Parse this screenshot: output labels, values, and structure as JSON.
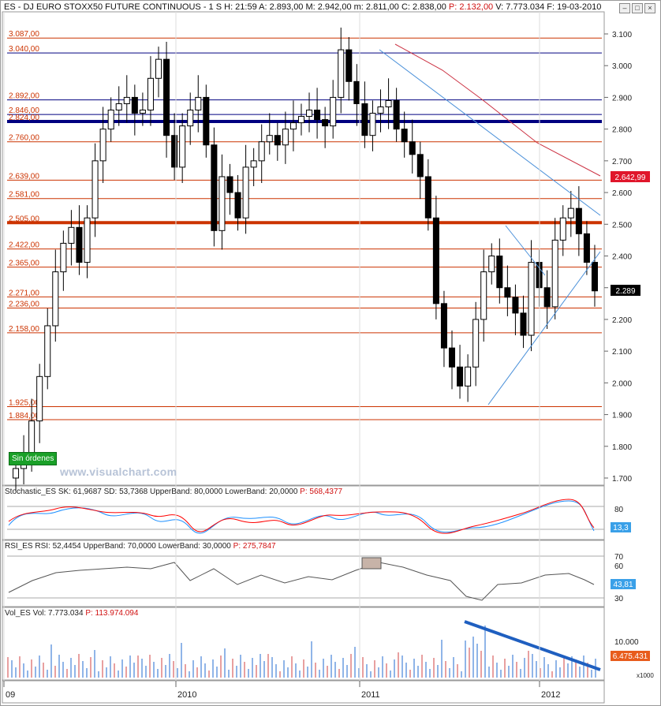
{
  "title_bar": {
    "symbol": "ES - DJ EURO STOXX50 FUTURE CONTINUOUS - 1 S",
    "ohlc": "H: 21:59 A: 2.893,00 M: 2.942,00 m: 2.811,00 C: 2.838,00",
    "p": "P: 2.132,00",
    "vol": "V: 7.773.034 F: 19-03-2010"
  },
  "window_buttons": [
    "–",
    "□",
    "×"
  ],
  "badges": {
    "sin_ordenes": "Sin órdenes"
  },
  "watermark": "www.visualchart.com",
  "price_scale": {
    "current_label": "2.289",
    "red_label": "2.642,99"
  },
  "colors": {
    "bars": "#000000",
    "blue_line": "#000080",
    "orange_line": "#cc3300",
    "k_line": "#ff0000",
    "d_line": "#1e90ff",
    "volume_bar": "#90b5e8",
    "trend_line": "#1f5fc0"
  },
  "indicators": {
    "stoch": {
      "label": "Stochastic_ES  SK: 61,9687  SD: 53,7368  UpperBand: 80,0000  LowerBand: 20,0000",
      "p": "P: 568,4377",
      "box_value": "13,3"
    },
    "rsi": {
      "label": "RSI_ES  RSI: 52,4454  UpperBand: 70,0000  LowerBand: 30,0000",
      "p": "P: 275,7847",
      "box_value": "43,81"
    },
    "vol": {
      "label": "Vol_ES  Vol: 7.773.034",
      "p": "P: 113.974.094",
      "box_value": "6.475.431",
      "scale_note": "x1000"
    }
  },
  "chart_data": {
    "type": "candlestick",
    "x_labels": [
      "09",
      "2010",
      "2011",
      "2012"
    ],
    "y_axis": {
      "min": 1700,
      "max": 3100,
      "ticks": [
        1700,
        1800,
        1900,
        2000,
        2100,
        2200,
        2300,
        2400,
        2500,
        2600,
        2700,
        2800,
        2900,
        3000,
        3100
      ]
    },
    "horizontal_levels": [
      {
        "value": 3087,
        "label": "3.087,00",
        "color": "#cc3300",
        "weight": 1
      },
      {
        "value": 3040,
        "label": "3.040,00",
        "color": "#000080",
        "weight": 1
      },
      {
        "value": 2892,
        "label": "2.892,00",
        "color": "#000080",
        "weight": 1
      },
      {
        "value": 2846,
        "label": "2.846,00",
        "color": "#000080",
        "weight": 1
      },
      {
        "value": 2824,
        "label": "2.824,00",
        "color": "#000080",
        "weight": 4
      },
      {
        "value": 2760,
        "label": "2.760,00",
        "color": "#cc3300",
        "weight": 1
      },
      {
        "value": 2639,
        "label": "2.639,00",
        "color": "#cc3300",
        "weight": 1
      },
      {
        "value": 2581,
        "label": "2.581,00",
        "color": "#cc3300",
        "weight": 1
      },
      {
        "value": 2505,
        "label": "2.505,00",
        "color": "#cc3300",
        "weight": 4
      },
      {
        "value": 2422,
        "label": "2.422,00",
        "color": "#cc3300",
        "weight": 1
      },
      {
        "value": 2365,
        "label": "2.365,00",
        "color": "#cc3300",
        "weight": 1
      },
      {
        "value": 2271,
        "label": "2.271,00",
        "color": "#cc3300",
        "weight": 1
      },
      {
        "value": 2236,
        "label": "2.236,00",
        "color": "#cc3300",
        "weight": 1
      },
      {
        "value": 2158,
        "label": "2.158,00",
        "color": "#cc3300",
        "weight": 1
      },
      {
        "value": 1925,
        "label": "1.925,00",
        "color": "#cc3300",
        "weight": 1
      },
      {
        "value": 1884,
        "label": "1.884,00",
        "color": "#cc3300",
        "weight": 1
      }
    ],
    "close_series": [
      1730,
      1780,
      1880,
      2020,
      2180,
      2350,
      2440,
      2490,
      2380,
      2520,
      2700,
      2800,
      2860,
      2880,
      2900,
      2850,
      2860,
      2960,
      3020,
      2780,
      2680,
      2810,
      2860,
      2900,
      2750,
      2480,
      2650,
      2600,
      2520,
      2680,
      2700,
      2760,
      2780,
      2750,
      2800,
      2820,
      2840,
      2860,
      2830,
      2810,
      2900,
      3050,
      2950,
      2880,
      2780,
      2850,
      2870,
      2890,
      2800,
      2760,
      2720,
      2650,
      2520,
      2250,
      2110,
      2050,
      1990,
      2050,
      2200,
      2350,
      2400,
      2300,
      2270,
      2220,
      2150,
      2380,
      2300,
      2240,
      2450,
      2520,
      2550,
      2470,
      2380,
      2290
    ]
  }
}
